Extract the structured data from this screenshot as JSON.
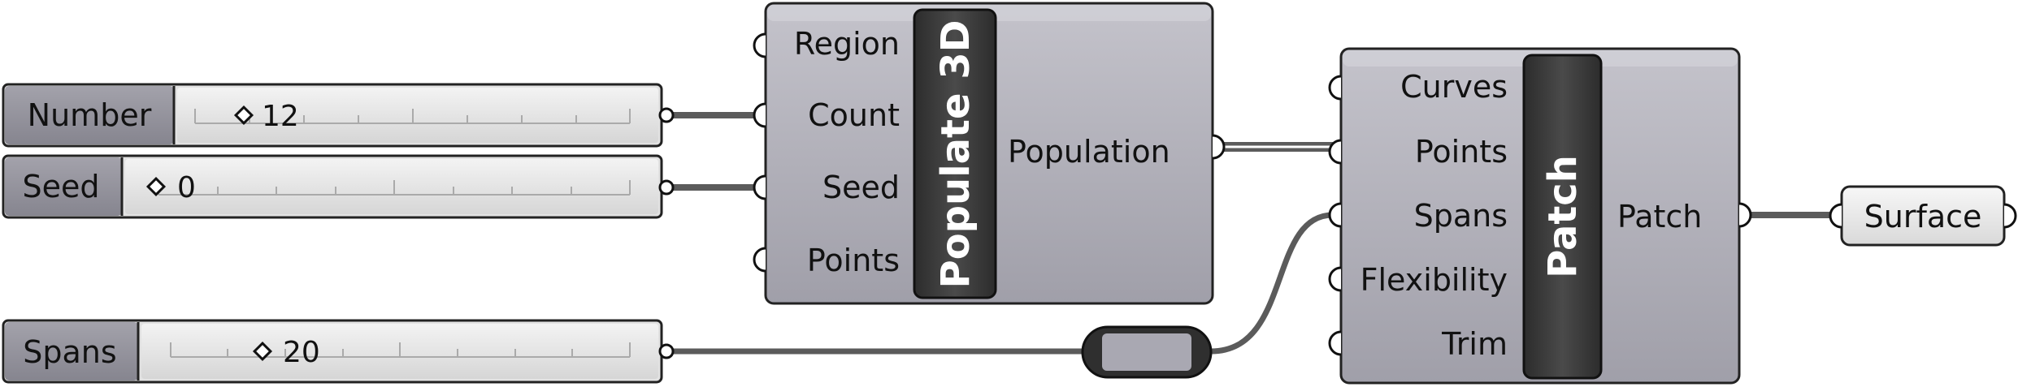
{
  "sliders": [
    {
      "name": "Number",
      "value": "12"
    },
    {
      "name": "Seed",
      "value": "0"
    },
    {
      "name": "Spans",
      "value": "20"
    }
  ],
  "populate": {
    "title": "Populate 3D",
    "inputs": [
      "Region",
      "Count",
      "Seed",
      "Points"
    ],
    "output": "Population"
  },
  "patch": {
    "title": "Patch",
    "inputs": [
      "Curves",
      "Points",
      "Spans",
      "Flexibility",
      "Trim"
    ],
    "output": "Patch"
  },
  "surface": {
    "label": "Surface"
  },
  "colors": {
    "component_body": "#a7a6b0",
    "caption_bar": "#3a3a3a",
    "slider_name": "#8e8d97",
    "slider_track": "#e0e0e0",
    "wire": "#5b5b5b"
  }
}
